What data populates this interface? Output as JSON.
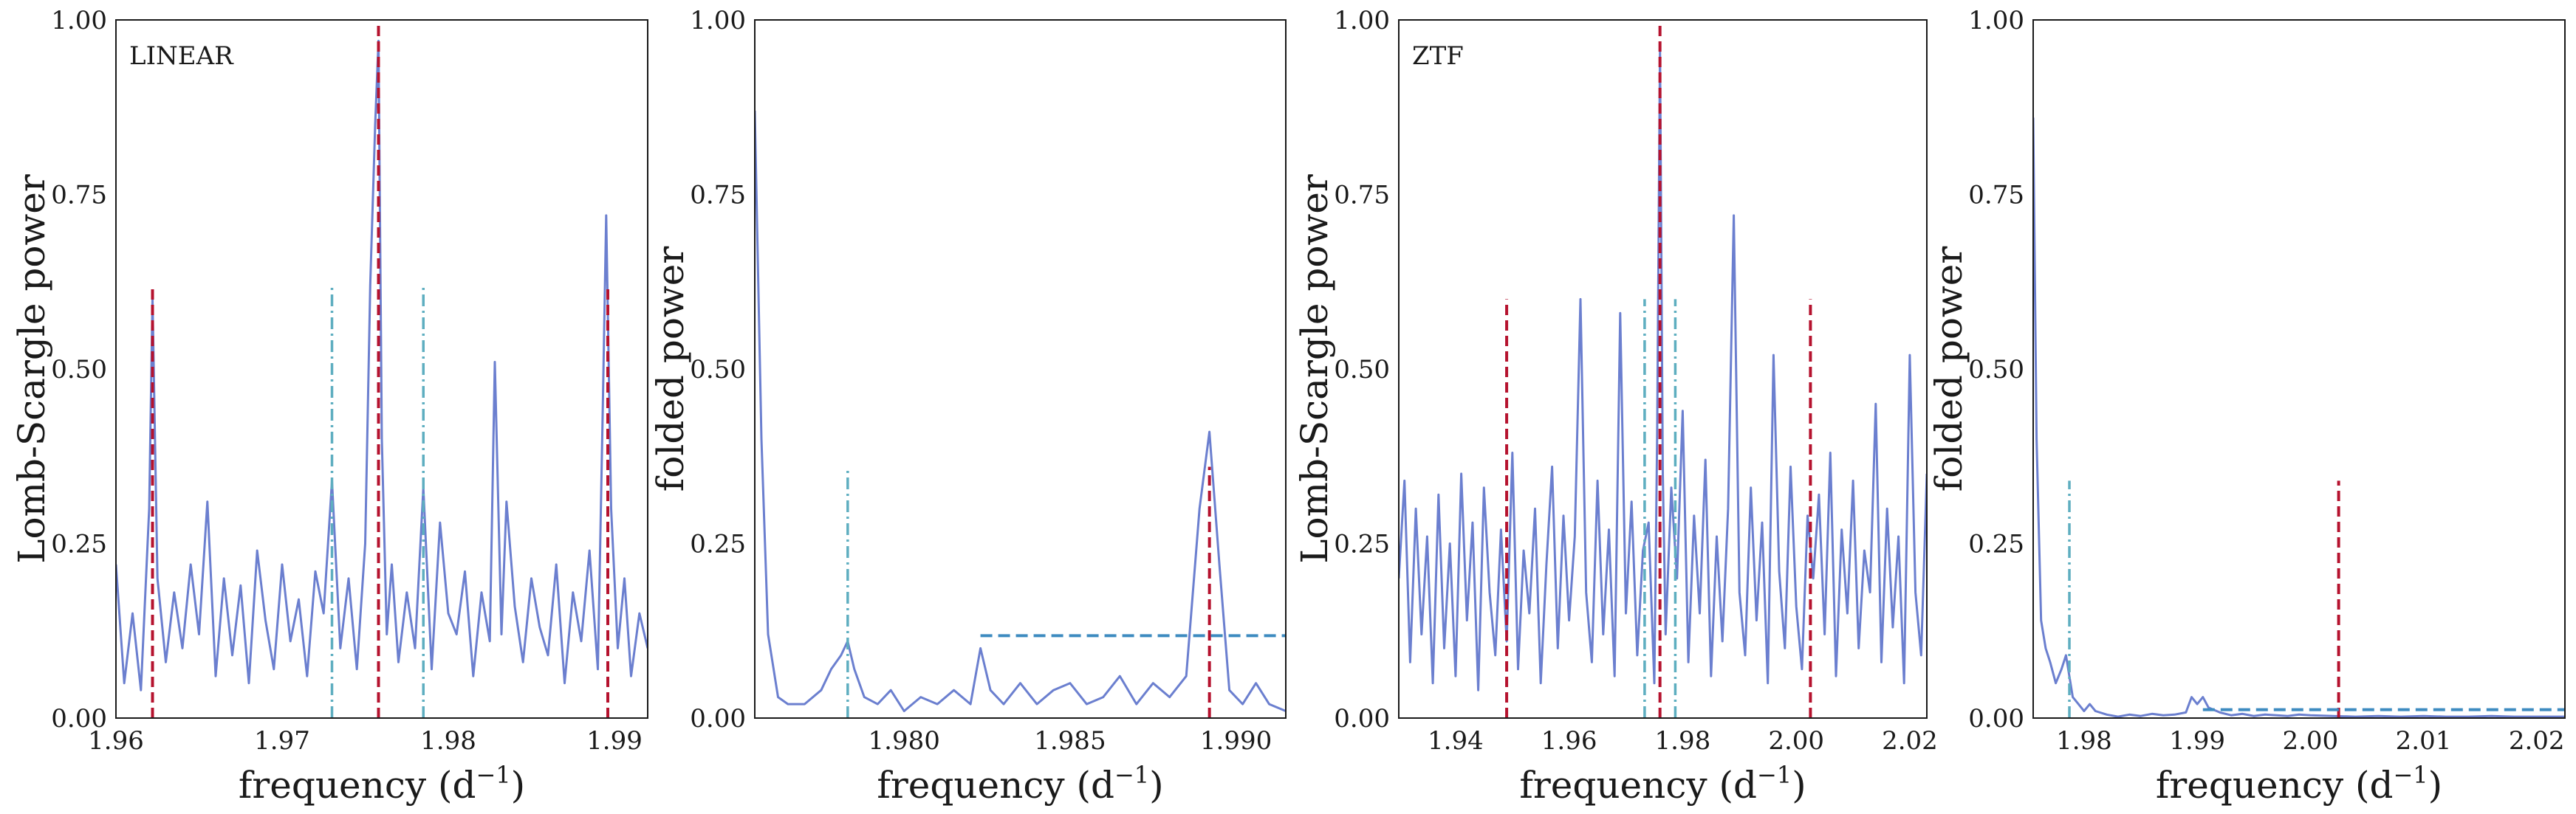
{
  "chart_data": [
    {
      "type": "line",
      "tag": "LINEAR",
      "xlabel": "frequency (d",
      "xlabel_sup": "−1",
      "xlabel_end": ")",
      "ylabel": "Lomb-Scargle power",
      "xlim": [
        1.96,
        1.992
      ],
      "ylim": [
        0,
        1
      ],
      "xticks": [
        1.96,
        1.97,
        1.98,
        1.99
      ],
      "xtick_labels": [
        "1.96",
        "1.97",
        "1.98",
        "1.99"
      ],
      "yticks": [
        0,
        0.25,
        0.5,
        0.75,
        1.0
      ],
      "ytick_labels": [
        "0.00",
        "0.25",
        "0.50",
        "0.75",
        "1.00"
      ],
      "colors": {
        "series": "#6b7fcf",
        "alias": "#b5122e",
        "harmonic": "#5eaec0",
        "threshold": "#3d8bc0"
      },
      "vlines_dashed": [
        {
          "x": 1.9622,
          "ymax": 0.62
        },
        {
          "x": 1.9758,
          "ymax": 1.0
        },
        {
          "x": 1.9896,
          "ymax": 0.62
        }
      ],
      "vlines_dashdot": [
        {
          "x": 1.973,
          "ymax": 0.62
        },
        {
          "x": 1.9785,
          "ymax": 0.62
        }
      ],
      "threshold": null,
      "series": [
        {
          "x": [
            1.96,
            1.9605,
            1.961,
            1.9615,
            1.962,
            1.9622,
            1.9625,
            1.963,
            1.9635,
            1.964,
            1.9645,
            1.965,
            1.9655,
            1.966,
            1.9665,
            1.967,
            1.9675,
            1.968,
            1.9685,
            1.969,
            1.9695,
            1.97,
            1.9705,
            1.971,
            1.9715,
            1.972,
            1.9725,
            1.973,
            1.9735,
            1.974,
            1.9745,
            1.975,
            1.9753,
            1.9756,
            1.9758,
            1.976,
            1.9763,
            1.9766,
            1.977,
            1.9775,
            1.978,
            1.9785,
            1.979,
            1.9795,
            1.98,
            1.9805,
            1.981,
            1.9815,
            1.982,
            1.9825,
            1.9828,
            1.9832,
            1.9835,
            1.984,
            1.9845,
            1.985,
            1.9855,
            1.986,
            1.9865,
            1.987,
            1.9875,
            1.988,
            1.9885,
            1.989,
            1.9893,
            1.9895,
            1.9898,
            1.9902,
            1.9906,
            1.991,
            1.9915,
            1.992
          ],
          "y": [
            0.22,
            0.05,
            0.15,
            0.04,
            0.3,
            0.6,
            0.2,
            0.08,
            0.18,
            0.1,
            0.22,
            0.12,
            0.31,
            0.06,
            0.2,
            0.09,
            0.19,
            0.05,
            0.24,
            0.14,
            0.07,
            0.22,
            0.11,
            0.17,
            0.06,
            0.21,
            0.15,
            0.34,
            0.1,
            0.2,
            0.07,
            0.25,
            0.62,
            0.85,
            0.97,
            0.4,
            0.12,
            0.22,
            0.08,
            0.18,
            0.1,
            0.33,
            0.07,
            0.28,
            0.15,
            0.12,
            0.21,
            0.06,
            0.18,
            0.11,
            0.51,
            0.12,
            0.31,
            0.16,
            0.08,
            0.2,
            0.13,
            0.09,
            0.22,
            0.05,
            0.18,
            0.11,
            0.24,
            0.07,
            0.45,
            0.72,
            0.3,
            0.1,
            0.2,
            0.06,
            0.15,
            0.1
          ]
        }
      ]
    },
    {
      "type": "line",
      "tag": "",
      "xlabel": "frequency (d",
      "xlabel_sup": "−1",
      "xlabel_end": ")",
      "ylabel": "folded power",
      "xlim": [
        1.9755,
        1.9915
      ],
      "ylim": [
        0,
        1
      ],
      "xticks": [
        1.98,
        1.985,
        1.99
      ],
      "xtick_labels": [
        "1.980",
        "1.985",
        "1.990"
      ],
      "yticks": [
        0,
        0.25,
        0.5,
        0.75,
        1.0
      ],
      "ytick_labels": [
        "0.00",
        "0.25",
        "0.50",
        "0.75",
        "1.00"
      ],
      "colors": {
        "series": "#6b7fcf",
        "alias": "#b5122e",
        "harmonic": "#5eaec0",
        "threshold": "#3d8bc0"
      },
      "vlines_dashed": [
        {
          "x": 1.9892,
          "ymax": 0.36
        }
      ],
      "vlines_dashdot": [
        {
          "x": 1.9783,
          "ymax": 0.36
        }
      ],
      "threshold": {
        "x0": 1.9823,
        "x1": 1.9915,
        "y": 0.118
      },
      "series": [
        {
          "x": [
            1.9755,
            1.9757,
            1.9759,
            1.9762,
            1.9765,
            1.977,
            1.9775,
            1.9778,
            1.9781,
            1.9783,
            1.9785,
            1.9788,
            1.9792,
            1.9796,
            1.98,
            1.9805,
            1.981,
            1.9815,
            1.982,
            1.9823,
            1.9826,
            1.983,
            1.9835,
            1.984,
            1.9845,
            1.985,
            1.9855,
            1.986,
            1.9865,
            1.987,
            1.9875,
            1.988,
            1.9885,
            1.9889,
            1.9892,
            1.9895,
            1.9898,
            1.9902,
            1.9906,
            1.991,
            1.9915
          ],
          "y": [
            0.87,
            0.4,
            0.12,
            0.03,
            0.02,
            0.02,
            0.04,
            0.07,
            0.09,
            0.11,
            0.07,
            0.03,
            0.02,
            0.04,
            0.01,
            0.03,
            0.02,
            0.04,
            0.02,
            0.1,
            0.04,
            0.02,
            0.05,
            0.02,
            0.04,
            0.05,
            0.02,
            0.03,
            0.06,
            0.02,
            0.05,
            0.03,
            0.06,
            0.3,
            0.41,
            0.22,
            0.04,
            0.02,
            0.05,
            0.02,
            0.01
          ]
        }
      ]
    },
    {
      "type": "line",
      "tag": "ZTF",
      "xlabel": "frequency (d",
      "xlabel_sup": "−1",
      "xlabel_end": ")",
      "ylabel": "Lomb-Scargle power",
      "xlim": [
        1.93,
        2.023
      ],
      "ylim": [
        0,
        1
      ],
      "xticks": [
        1.94,
        1.96,
        1.98,
        2.0,
        2.02
      ],
      "xtick_labels": [
        "1.94",
        "1.96",
        "1.98",
        "2.00",
        "2.02"
      ],
      "yticks": [
        0,
        0.25,
        0.5,
        0.75,
        1.0
      ],
      "ytick_labels": [
        "0.00",
        "0.25",
        "0.50",
        "0.75",
        "1.00"
      ],
      "colors": {
        "series": "#6b7fcf",
        "alias": "#b5122e",
        "harmonic": "#5eaec0",
        "threshold": "#3d8bc0"
      },
      "vlines_dashed": [
        {
          "x": 1.949,
          "ymax": 0.6
        },
        {
          "x": 1.976,
          "ymax": 1.0
        },
        {
          "x": 2.0025,
          "ymax": 0.6
        }
      ],
      "vlines_dashdot": [
        {
          "x": 1.9733,
          "ymax": 0.6
        },
        {
          "x": 1.9787,
          "ymax": 0.6
        }
      ],
      "threshold": null,
      "series": [
        {
          "x": [
            1.93,
            1.931,
            1.932,
            1.933,
            1.934,
            1.935,
            1.936,
            1.937,
            1.938,
            1.939,
            1.94,
            1.941,
            1.942,
            1.943,
            1.944,
            1.945,
            1.946,
            1.947,
            1.948,
            1.949,
            1.95,
            1.951,
            1.952,
            1.953,
            1.954,
            1.955,
            1.956,
            1.957,
            1.958,
            1.959,
            1.96,
            1.961,
            1.962,
            1.963,
            1.964,
            1.965,
            1.966,
            1.967,
            1.968,
            1.969,
            1.97,
            1.971,
            1.972,
            1.973,
            1.974,
            1.975,
            1.9755,
            1.976,
            1.9765,
            1.977,
            1.978,
            1.979,
            1.98,
            1.981,
            1.982,
            1.983,
            1.984,
            1.985,
            1.986,
            1.987,
            1.988,
            1.989,
            1.99,
            1.991,
            1.992,
            1.993,
            1.994,
            1.995,
            1.996,
            1.997,
            1.998,
            1.999,
            2.0,
            2.001,
            2.002,
            2.003,
            2.004,
            2.005,
            2.006,
            2.007,
            2.008,
            2.009,
            2.01,
            2.011,
            2.012,
            2.013,
            2.014,
            2.015,
            2.016,
            2.017,
            2.018,
            2.019,
            2.02,
            2.021,
            2.022,
            2.023
          ],
          "y": [
            0.2,
            0.34,
            0.08,
            0.3,
            0.12,
            0.26,
            0.05,
            0.32,
            0.1,
            0.25,
            0.06,
            0.35,
            0.14,
            0.28,
            0.04,
            0.33,
            0.18,
            0.09,
            0.27,
            0.11,
            0.38,
            0.07,
            0.24,
            0.15,
            0.3,
            0.05,
            0.22,
            0.36,
            0.1,
            0.29,
            0.14,
            0.26,
            0.6,
            0.18,
            0.08,
            0.34,
            0.12,
            0.27,
            0.06,
            0.58,
            0.15,
            0.31,
            0.09,
            0.24,
            0.28,
            0.05,
            0.4,
            0.96,
            0.35,
            0.12,
            0.33,
            0.2,
            0.44,
            0.08,
            0.29,
            0.15,
            0.37,
            0.06,
            0.26,
            0.11,
            0.3,
            0.72,
            0.18,
            0.09,
            0.33,
            0.14,
            0.28,
            0.05,
            0.52,
            0.21,
            0.1,
            0.36,
            0.16,
            0.07,
            0.29,
            0.2,
            0.32,
            0.12,
            0.38,
            0.06,
            0.27,
            0.15,
            0.34,
            0.1,
            0.24,
            0.18,
            0.45,
            0.08,
            0.3,
            0.13,
            0.26,
            0.05,
            0.52,
            0.18,
            0.09,
            0.35
          ]
        }
      ]
    },
    {
      "type": "line",
      "tag": "",
      "xlabel": "frequency (d",
      "xlabel_sup": "−1",
      "xlabel_end": ")",
      "ylabel": "folded power",
      "xlim": [
        1.9755,
        2.0225
      ],
      "ylim": [
        0,
        1
      ],
      "xticks": [
        1.98,
        1.99,
        2.0,
        2.01,
        2.02
      ],
      "xtick_labels": [
        "1.98",
        "1.99",
        "2.00",
        "2.01",
        "2.02"
      ],
      "yticks": [
        0,
        0.25,
        0.5,
        0.75,
        1.0
      ],
      "ytick_labels": [
        "0.00",
        "0.25",
        "0.50",
        "0.75",
        "1.00"
      ],
      "colors": {
        "series": "#6b7fcf",
        "alias": "#b5122e",
        "harmonic": "#5eaec0",
        "threshold": "#3d8bc0"
      },
      "vlines_dashed": [
        {
          "x": 2.0025,
          "ymax": 0.34
        }
      ],
      "vlines_dashdot": [
        {
          "x": 1.9787,
          "ymax": 0.34
        }
      ],
      "threshold": {
        "x0": 1.9905,
        "x1": 2.0225,
        "y": 0.012
      },
      "series": [
        {
          "x": [
            1.9755,
            1.9758,
            1.9762,
            1.9766,
            1.977,
            1.9775,
            1.978,
            1.9784,
            1.9787,
            1.979,
            1.9795,
            1.98,
            1.9805,
            1.981,
            1.982,
            1.983,
            1.984,
            1.985,
            1.986,
            1.987,
            1.988,
            1.989,
            1.9895,
            1.99,
            1.9905,
            1.991,
            1.992,
            1.993,
            1.994,
            1.995,
            1.996,
            1.997,
            1.998,
            1.999,
            2.0,
            2.002,
            2.004,
            2.006,
            2.008,
            2.01,
            2.012,
            2.014,
            2.016,
            2.018,
            2.02,
            2.0225
          ],
          "y": [
            0.86,
            0.4,
            0.14,
            0.1,
            0.08,
            0.05,
            0.07,
            0.09,
            0.06,
            0.03,
            0.02,
            0.01,
            0.02,
            0.01,
            0.005,
            0.002,
            0.005,
            0.003,
            0.006,
            0.004,
            0.005,
            0.008,
            0.03,
            0.02,
            0.03,
            0.015,
            0.008,
            0.004,
            0.006,
            0.003,
            0.005,
            0.004,
            0.003,
            0.005,
            0.004,
            0.003,
            0.002,
            0.003,
            0.002,
            0.003,
            0.002,
            0.002,
            0.003,
            0.002,
            0.002,
            0.002
          ]
        }
      ]
    }
  ]
}
